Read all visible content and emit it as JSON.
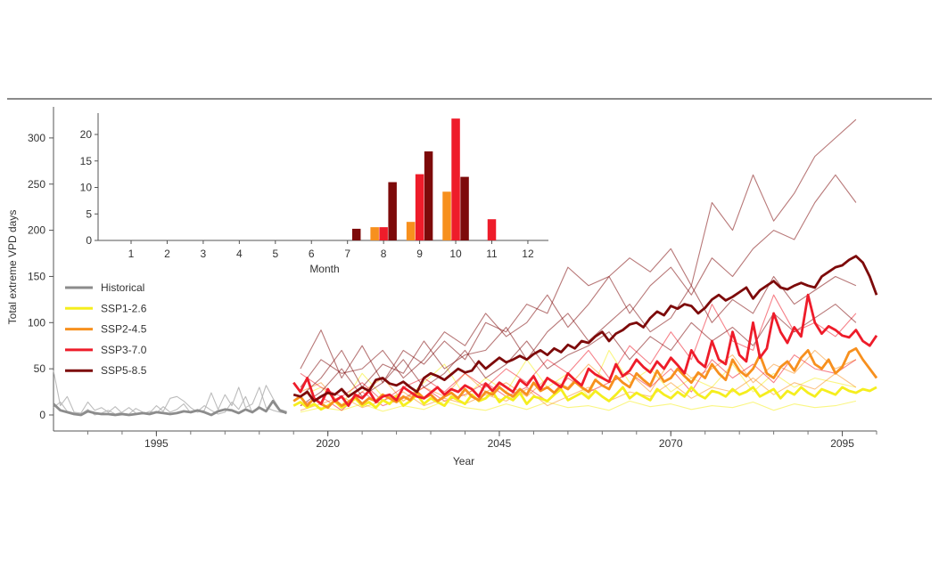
{
  "chart_data": [
    {
      "type": "line",
      "xlabel": "Year",
      "ylabel": "Total extreme VPD days",
      "xlim": [
        1980,
        2100
      ],
      "ylim": [
        -15,
        330
      ],
      "xticks": [
        1995,
        2020,
        2045,
        2070,
        2095
      ],
      "yticks": [
        0,
        50,
        100,
        150,
        200,
        250,
        300
      ],
      "grid": false,
      "legend_position": "left",
      "colors": {
        "Historical": "#8c8c8c",
        "SSP1-2.6": "#f5ee1e",
        "SSP2-4.5": "#f7901e",
        "SSP3-7.0": "#ee1c2a",
        "SSP5-8.5": "#7d0a0a"
      },
      "series": [
        {
          "name": "Historical",
          "start_year": 1980,
          "mean": [
            12,
            5,
            3,
            1,
            0,
            4,
            2,
            1,
            1,
            0,
            1,
            0,
            1,
            2,
            1,
            3,
            2,
            1,
            2,
            4,
            3,
            5,
            3,
            0,
            4,
            6,
            5,
            2,
            6,
            3,
            8,
            4,
            15,
            5,
            2
          ],
          "members": [
            [
              48,
              10,
              20,
              3,
              2,
              14,
              5,
              8,
              3,
              9,
              2,
              1,
              7,
              3,
              2,
              10,
              4,
              18,
              20,
              15,
              8,
              3,
              5,
              24,
              6,
              22,
              10,
              30,
              8,
              12,
              30,
              8,
              5,
              3,
              2
            ],
            [
              8,
              14,
              4,
              2,
              1,
              6,
              0,
              2,
              5,
              1,
              3,
              8,
              2,
              1,
              4,
              2,
              9,
              3,
              6,
              12,
              2,
              4,
              10,
              5,
              1,
              3,
              14,
              6,
              20,
              2,
              10,
              32,
              18,
              6,
              4
            ]
          ]
        },
        {
          "name": "SSP1-2.6",
          "start_year": 2015,
          "mean": [
            10,
            14,
            8,
            12,
            6,
            10,
            15,
            8,
            12,
            18,
            10,
            14,
            8,
            16,
            12,
            20,
            10,
            15,
            22,
            12,
            18,
            14,
            10,
            20,
            16,
            12,
            22,
            15,
            18,
            25,
            14,
            20,
            16,
            24,
            12,
            20,
            18,
            15,
            22,
            28,
            16,
            20,
            24,
            18,
            26,
            20,
            15,
            22,
            30,
            18,
            24,
            20,
            16,
            28,
            22,
            18,
            25,
            20,
            30,
            22,
            18,
            26,
            24,
            20,
            28,
            22,
            25,
            30,
            20,
            24,
            28,
            18,
            26,
            22,
            30,
            24,
            20,
            28,
            25,
            22,
            30,
            26,
            24,
            28,
            26,
            30
          ],
          "members": [
            [
              20,
              30,
              10,
              45,
              20,
              15,
              35,
              55,
              20,
              40,
              25,
              60,
              30,
              45,
              20,
              70,
              35,
              50,
              25,
              40,
              30,
              55,
              25,
              45,
              30,
              40,
              35,
              30
            ],
            [
              3,
              8,
              5,
              12,
              4,
              10,
              6,
              15,
              8,
              5,
              12,
              6,
              14,
              8,
              10,
              5,
              15,
              9,
              12,
              6,
              10,
              8,
              14,
              5,
              12,
              8,
              10,
              15
            ]
          ]
        },
        {
          "name": "SSP2-4.5",
          "start_year": 2015,
          "mean": [
            15,
            20,
            10,
            18,
            12,
            8,
            16,
            10,
            14,
            20,
            12,
            18,
            15,
            22,
            18,
            14,
            20,
            16,
            25,
            18,
            22,
            15,
            20,
            24,
            18,
            28,
            20,
            16,
            25,
            22,
            30,
            24,
            20,
            28,
            22,
            35,
            26,
            30,
            24,
            32,
            28,
            36,
            30,
            25,
            38,
            32,
            28,
            42,
            35,
            30,
            45,
            38,
            32,
            48,
            36,
            40,
            50,
            42,
            35,
            46,
            40,
            55,
            45,
            38,
            60,
            48,
            42,
            50,
            65,
            45,
            40,
            52,
            58,
            48,
            62,
            70,
            55,
            50,
            60,
            45,
            52,
            68,
            72,
            60,
            50,
            40
          ],
          "members": [
            [
              25,
              35,
              10,
              25,
              40,
              15,
              30,
              20,
              45,
              25,
              35,
              20,
              40,
              30,
              55,
              35,
              45,
              25,
              60,
              40,
              50,
              65,
              35,
              55,
              45,
              70,
              50,
              60
            ],
            [
              5,
              12,
              20,
              8,
              15,
              25,
              10,
              18,
              12,
              22,
              15,
              28,
              10,
              20,
              30,
              15,
              25,
              20,
              35,
              18,
              30,
              25,
              40,
              22,
              35,
              28,
              45,
              30
            ]
          ]
        },
        {
          "name": "SSP3-7.0",
          "start_year": 2015,
          "mean": [
            35,
            25,
            40,
            18,
            12,
            28,
            15,
            20,
            10,
            22,
            18,
            26,
            14,
            20,
            22,
            16,
            30,
            25,
            20,
            18,
            24,
            30,
            22,
            28,
            25,
            32,
            28,
            20,
            34,
            26,
            35,
            30,
            25,
            38,
            32,
            42,
            28,
            40,
            35,
            30,
            45,
            38,
            32,
            50,
            44,
            40,
            36,
            55,
            42,
            48,
            60,
            52,
            46,
            58,
            50,
            62,
            54,
            45,
            70,
            58,
            52,
            80,
            60,
            55,
            90,
            65,
            58,
            100,
            62,
            72,
            110,
            90,
            78,
            95,
            85,
            130,
            100,
            88,
            96,
            92,
            86,
            84,
            92,
            80,
            75,
            86
          ],
          "members": [
            [
              45,
              30,
              20,
              35,
              15,
              30,
              40,
              25,
              45,
              30,
              50,
              35,
              60,
              45,
              70,
              40,
              75,
              55,
              90,
              60,
              120,
              80,
              70,
              130,
              90,
              100,
              85,
              110
            ],
            [
              10,
              20,
              5,
              25,
              10,
              18,
              30,
              15,
              22,
              35,
              20,
              30,
              15,
              40,
              25,
              35,
              45,
              30,
              50,
              25,
              60,
              40,
              55,
              35,
              65,
              50,
              45,
              60
            ]
          ]
        },
        {
          "name": "SSP5-8.5",
          "start_year": 2015,
          "mean": [
            22,
            20,
            25,
            15,
            20,
            24,
            22,
            28,
            20,
            25,
            30,
            26,
            38,
            40,
            34,
            32,
            36,
            30,
            25,
            40,
            45,
            42,
            38,
            44,
            50,
            46,
            48,
            58,
            50,
            56,
            62,
            57,
            60,
            64,
            60,
            66,
            70,
            65,
            72,
            68,
            76,
            72,
            80,
            78,
            85,
            90,
            80,
            88,
            92,
            98,
            100,
            95,
            105,
            112,
            108,
            118,
            115,
            120,
            118,
            110,
            116,
            125,
            130,
            124,
            128,
            133,
            138,
            126,
            135,
            140,
            145,
            138,
            136,
            140,
            143,
            140,
            138,
            150,
            155,
            160,
            162,
            168,
            172,
            165,
            150,
            130
          ],
          "members": [
            [
              50,
              92,
              40,
              75,
              35,
              70,
              55,
              80,
              60,
              100,
              90,
              120,
              110,
              160,
              140,
              150,
              170,
              155,
              180,
              140,
              230,
              200,
              260,
              210,
              240,
              280,
              300,
              320
            ],
            [
              30,
              60,
              45,
              50,
              70,
              40,
              60,
              90,
              75,
              110,
              85,
              100,
              130,
              95,
              120,
              150,
              110,
              140,
              160,
              130,
              170,
              150,
              180,
              200,
              190,
              230,
              260,
              230
            ],
            [
              20,
              40,
              70,
              30,
              55,
              45,
              80,
              50,
              65,
              70,
              95,
              60,
              90,
              110,
              80,
              100,
              120,
              90,
              105,
              140,
              100,
              125,
              110,
              150,
              120,
              135,
              150,
              140
            ],
            [
              10,
              25,
              50,
              20,
              35,
              60,
              30,
              45,
              70,
              40,
              55,
              80,
              50,
              65,
              75,
              90,
              60,
              85,
              70,
              100,
              80,
              95,
              75,
              110,
              90,
              105,
              120,
              100
            ]
          ]
        }
      ],
      "member_years": [
        2016,
        2019,
        2022,
        2025,
        2028,
        2031,
        2034,
        2037,
        2040,
        2043,
        2046,
        2049,
        2052,
        2055,
        2058,
        2061,
        2064,
        2067,
        2070,
        2073,
        2076,
        2079,
        2082,
        2085,
        2088,
        2091,
        2094,
        2097
      ]
    },
    {
      "type": "bar",
      "xlabel": "Month",
      "ylabel": "",
      "categories": [
        "1",
        "2",
        "3",
        "4",
        "5",
        "6",
        "7",
        "8",
        "9",
        "10",
        "11",
        "12"
      ],
      "yticks": [
        0,
        5,
        10,
        15,
        20
      ],
      "ylim": [
        0,
        24
      ],
      "grid": false,
      "series": [
        {
          "name": "SSP1-2.6",
          "values": [
            0,
            0,
            0,
            0,
            0,
            0,
            0,
            0,
            0,
            0,
            0,
            0
          ]
        },
        {
          "name": "SSP2-4.5",
          "values": [
            0,
            0,
            0,
            0,
            0,
            0,
            0,
            2.5,
            3.5,
            9.2,
            0,
            0
          ]
        },
        {
          "name": "SSP3-7.0",
          "values": [
            0,
            0,
            0,
            0,
            0,
            0,
            0,
            2.5,
            12.5,
            23,
            4,
            0
          ]
        },
        {
          "name": "SSP5-8.5",
          "values": [
            0,
            0,
            0,
            0,
            0,
            0,
            2.2,
            11,
            16.8,
            12,
            0,
            0
          ]
        }
      ]
    }
  ]
}
